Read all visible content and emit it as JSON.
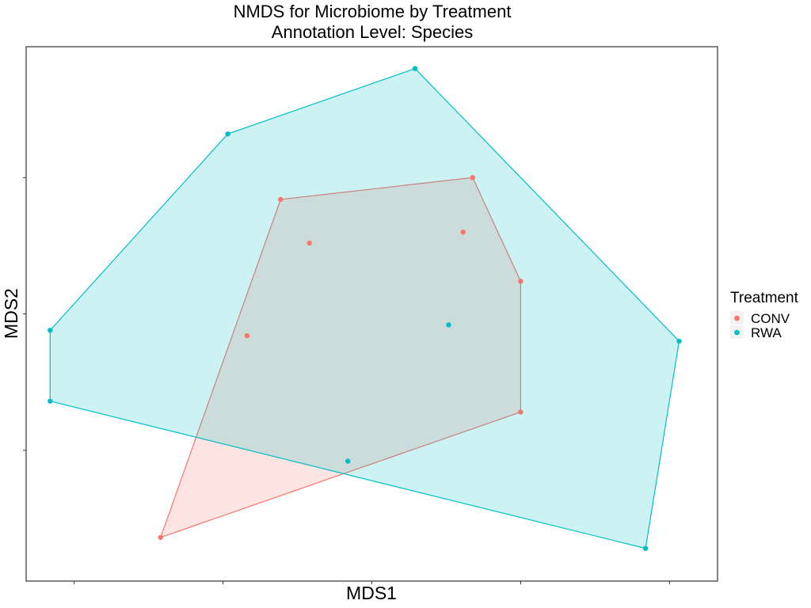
{
  "chart_data": {
    "type": "scatter",
    "title": [
      "NMDS for Microbiome by Treatment",
      "Annotation Level: Species"
    ],
    "xlabel": "MDS1",
    "ylabel": "MDS2",
    "xlim": [
      -0.72,
      0.72
    ],
    "ylim": [
      -0.49,
      0.49
    ],
    "x_ticks": [
      -0.62,
      -0.31,
      0.0,
      0.31,
      0.62
    ],
    "y_ticks": [
      -0.25,
      0.0,
      0.25
    ],
    "show_tick_labels": false,
    "grid": false,
    "hulls": true,
    "legend": {
      "title": "Treatment",
      "position": "right"
    },
    "series": [
      {
        "name": "CONV",
        "color": "#F8766D",
        "points": [
          {
            "x": -0.44,
            "y": -0.41
          },
          {
            "x": -0.19,
            "y": 0.21
          },
          {
            "x": -0.13,
            "y": 0.13
          },
          {
            "x": -0.26,
            "y": -0.04
          },
          {
            "x": 0.19,
            "y": 0.15
          },
          {
            "x": 0.21,
            "y": 0.25
          },
          {
            "x": 0.31,
            "y": 0.06
          },
          {
            "x": 0.31,
            "y": -0.18
          }
        ],
        "hull": [
          [
            -0.44,
            -0.41
          ],
          [
            -0.19,
            0.21
          ],
          [
            0.21,
            0.25
          ],
          [
            0.31,
            0.06
          ],
          [
            0.31,
            -0.18
          ]
        ]
      },
      {
        "name": "RWA",
        "color": "#00BFC4",
        "points": [
          {
            "x": -0.67,
            "y": -0.16
          },
          {
            "x": -0.67,
            "y": -0.03
          },
          {
            "x": -0.3,
            "y": 0.33
          },
          {
            "x": 0.09,
            "y": 0.45
          },
          {
            "x": 0.64,
            "y": -0.05
          },
          {
            "x": 0.57,
            "y": -0.43
          },
          {
            "x": 0.16,
            "y": -0.02
          },
          {
            "x": -0.05,
            "y": -0.27
          }
        ],
        "hull": [
          [
            -0.67,
            -0.16
          ],
          [
            -0.67,
            -0.03
          ],
          [
            -0.3,
            0.33
          ],
          [
            0.09,
            0.45
          ],
          [
            0.64,
            -0.05
          ],
          [
            0.57,
            -0.43
          ]
        ]
      }
    ]
  }
}
